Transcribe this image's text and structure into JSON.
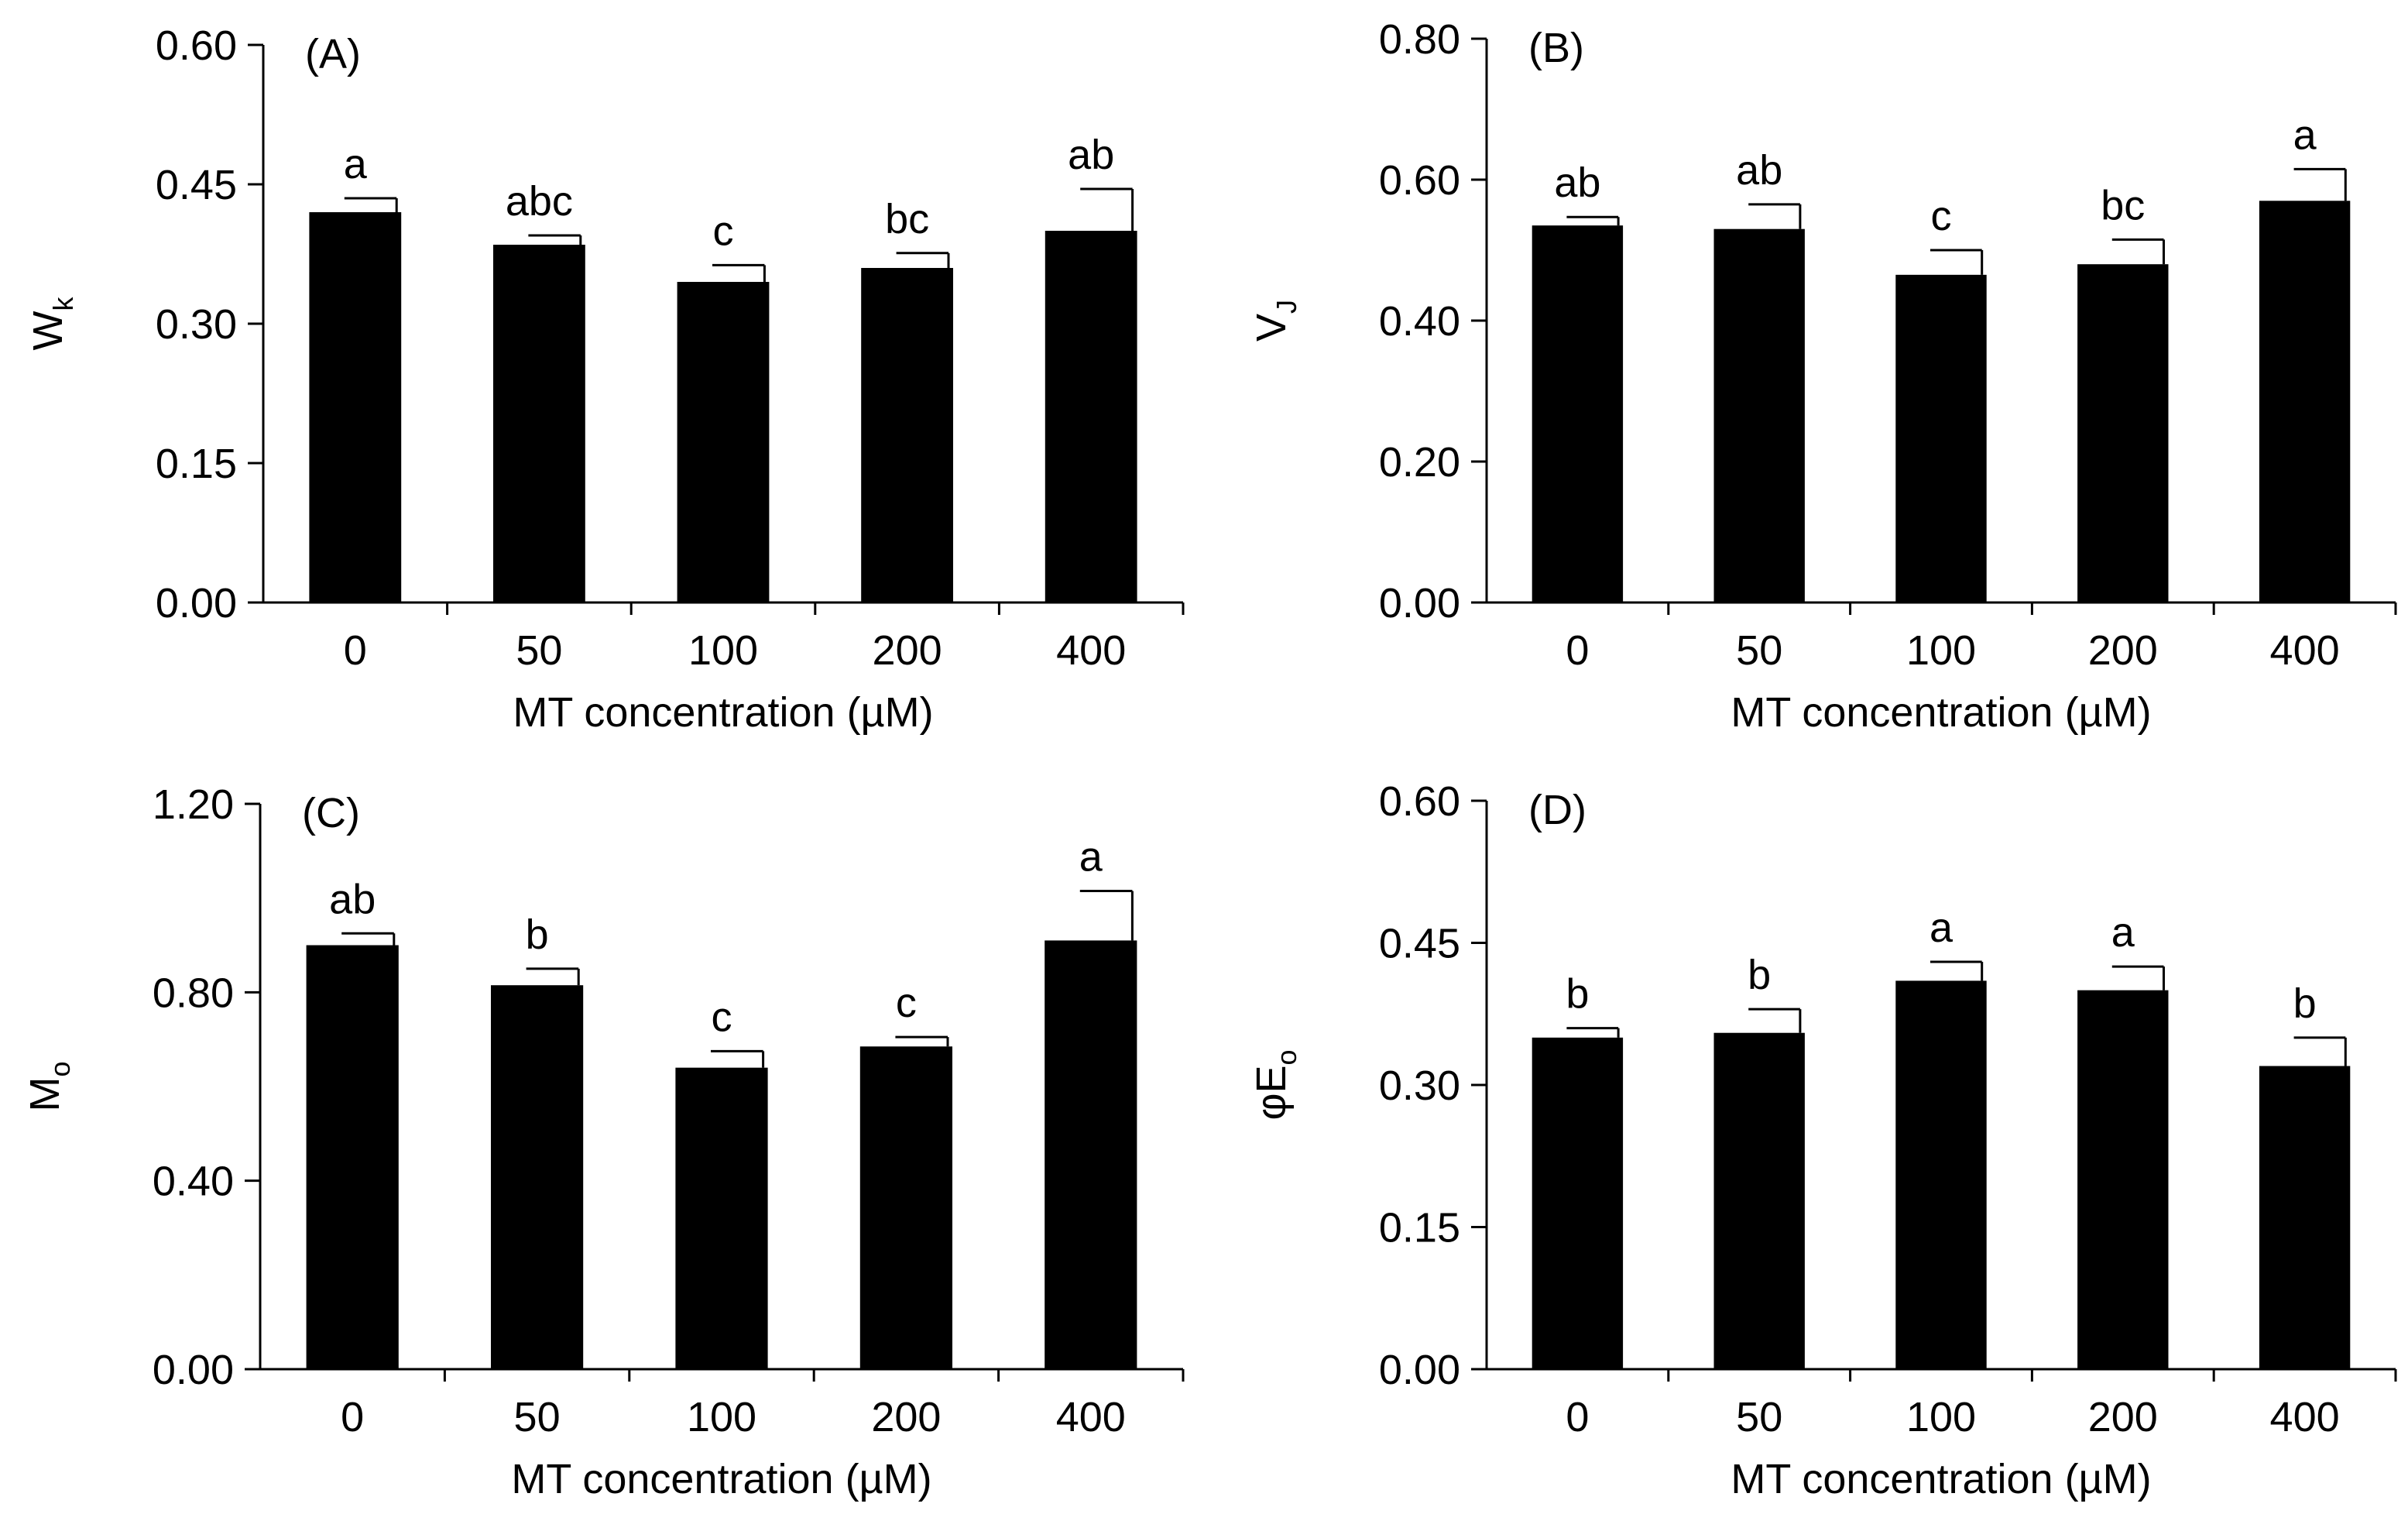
{
  "chart_data": [
    {
      "type": "bar",
      "panel_label": "(A)",
      "y_label": {
        "main": "W",
        "sub": "k"
      },
      "x_label": "MT concentration (µM)",
      "categories": [
        "0",
        "50",
        "100",
        "200",
        "400"
      ],
      "values": [
        0.42,
        0.385,
        0.345,
        0.36,
        0.4
      ],
      "errors": [
        0.015,
        0.01,
        0.018,
        0.016,
        0.045
      ],
      "letters": [
        "a",
        "abc",
        "c",
        "bc",
        "ab"
      ],
      "yticks": [
        "0.00",
        "0.15",
        "0.30",
        "0.45",
        "0.60"
      ],
      "ylim": [
        0,
        0.6
      ],
      "bar_color": "#000000"
    },
    {
      "type": "bar",
      "panel_label": "(B)",
      "y_label": {
        "main": "V",
        "sub": "J"
      },
      "x_label": "MT concentration (µM)",
      "categories": [
        "0",
        "50",
        "100",
        "200",
        "400"
      ],
      "values": [
        0.535,
        0.53,
        0.465,
        0.48,
        0.57
      ],
      "errors": [
        0.012,
        0.035,
        0.035,
        0.035,
        0.045
      ],
      "letters": [
        "ab",
        "ab",
        "c",
        "bc",
        "a"
      ],
      "yticks": [
        "0.00",
        "0.20",
        "0.40",
        "0.60",
        "0.80"
      ],
      "ylim": [
        0,
        0.8
      ],
      "bar_color": "#000000"
    },
    {
      "type": "bar",
      "panel_label": "(C)",
      "y_label": {
        "main": "M",
        "sub": "o"
      },
      "x_label": "MT concentration (µM)",
      "categories": [
        "0",
        "50",
        "100",
        "200",
        "400"
      ],
      "values": [
        0.9,
        0.815,
        0.64,
        0.685,
        0.91
      ],
      "errors": [
        0.025,
        0.035,
        0.035,
        0.02,
        0.105
      ],
      "letters": [
        "ab",
        "b",
        "c",
        "c",
        "a"
      ],
      "yticks": [
        "0.00",
        "0.40",
        "0.80",
        "1.20"
      ],
      "ylim": [
        0,
        1.2
      ],
      "bar_color": "#000000"
    },
    {
      "type": "bar",
      "panel_label": "(D)",
      "y_label": {
        "main": "φE",
        "sub": "o"
      },
      "x_label": "MT concentration (µM)",
      "categories": [
        "0",
        "50",
        "100",
        "200",
        "400"
      ],
      "values": [
        0.35,
        0.355,
        0.41,
        0.4,
        0.32
      ],
      "errors": [
        0.01,
        0.025,
        0.02,
        0.025,
        0.03
      ],
      "letters": [
        "b",
        "b",
        "a",
        "a",
        "b"
      ],
      "yticks": [
        "0.00",
        "0.15",
        "0.30",
        "0.45",
        "0.60"
      ],
      "ylim": [
        0,
        0.6
      ],
      "bar_color": "#000000"
    }
  ]
}
